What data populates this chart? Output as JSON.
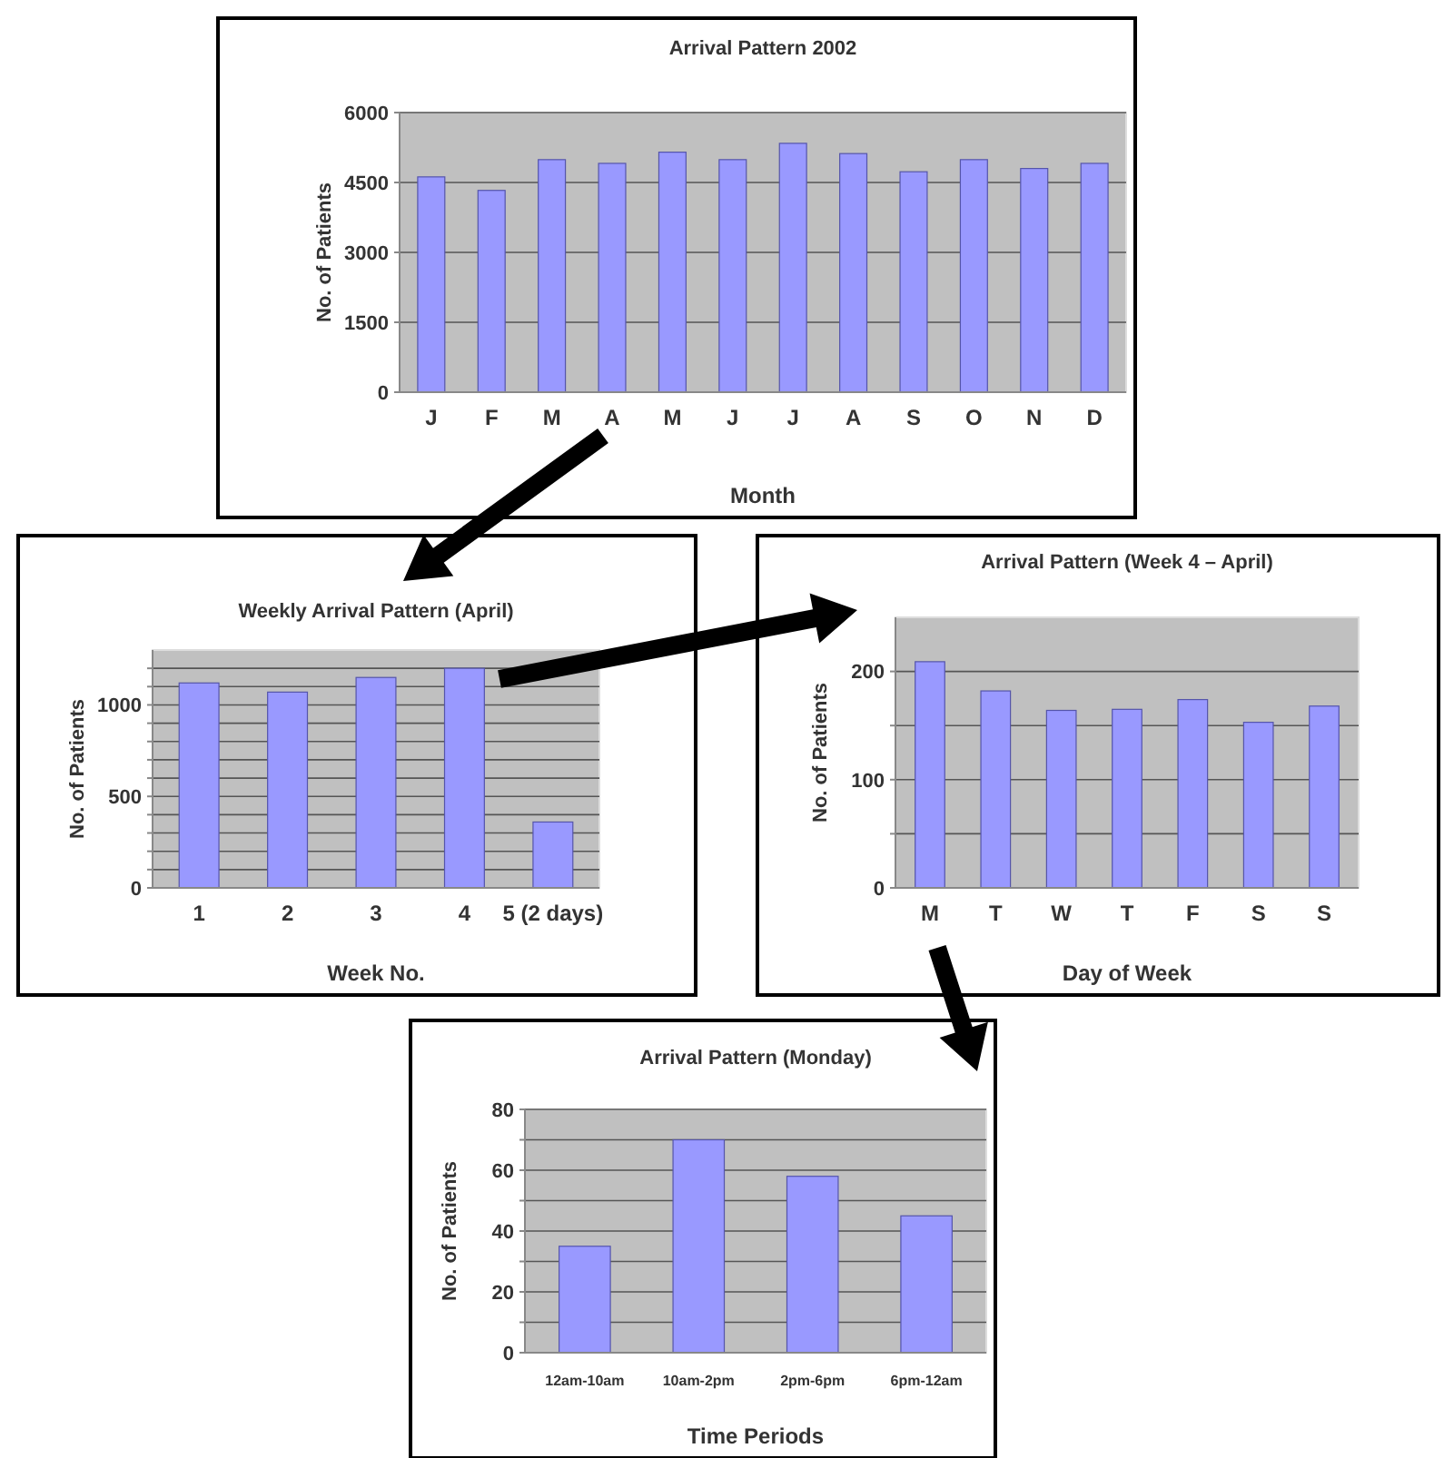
{
  "chart_data": [
    {
      "type": "bar",
      "title": "Arrival Pattern 2002",
      "xlabel": "Month",
      "ylabel": "No. of Patients",
      "categories": [
        "J",
        "F",
        "M",
        "A",
        "M",
        "J",
        "J",
        "A",
        "S",
        "O",
        "N",
        "D"
      ],
      "values": [
        4620,
        4330,
        4990,
        4910,
        5150,
        4990,
        5340,
        5120,
        4730,
        4990,
        4800,
        4910
      ],
      "color": "#9999ff",
      "ylim": [
        0,
        6000
      ],
      "yticks": [
        0,
        1500,
        3000,
        4500,
        6000
      ],
      "grid": "y"
    },
    {
      "type": "bar",
      "title": "Weekly Arrival Pattern (April)",
      "xlabel": "Week No.",
      "ylabel": "No. of Patients",
      "categories": [
        "1",
        "2",
        "3",
        "4",
        "5 (2 days)"
      ],
      "values": [
        1120,
        1070,
        1150,
        1200,
        360
      ],
      "color": "#9999ff",
      "ylim": [
        0,
        1300
      ],
      "yticks": [
        0,
        {
          "value": 100,
          "label": null
        },
        {
          "value": 200,
          "label": null
        },
        {
          "value": 300,
          "label": null
        },
        {
          "value": 400,
          "label": null
        },
        500,
        {
          "value": 600,
          "label": null
        },
        {
          "value": 700,
          "label": null
        },
        {
          "value": 800,
          "label": null
        },
        {
          "value": 900,
          "label": null
        },
        1000,
        {
          "value": 1100,
          "label": null
        },
        {
          "value": 1200,
          "label": null
        }
      ],
      "grid": "y"
    },
    {
      "type": "bar",
      "title": "Arrival Pattern (Week 4 – April)",
      "xlabel": "Day of Week",
      "ylabel": "No. of Patients",
      "categories": [
        "M",
        "T",
        "W",
        "T",
        "F",
        "S",
        "S"
      ],
      "values": [
        209,
        182,
        164,
        165,
        174,
        153,
        168
      ],
      "color": "#9999ff",
      "ylim": [
        0,
        250
      ],
      "yticks": [
        0,
        {
          "value": 50,
          "label": null
        },
        100,
        {
          "value": 150,
          "label": null
        },
        200
      ],
      "grid": "y"
    },
    {
      "type": "bar",
      "title": "Arrival Pattern (Monday)",
      "xlabel": "Time Periods",
      "ylabel": "No. of Patients",
      "categories": [
        "12am-10am",
        "10am-2pm",
        "2pm-6pm",
        "6pm-12am"
      ],
      "values": [
        35,
        70,
        58,
        45
      ],
      "color": "#9999ff",
      "ylim": [
        0,
        80
      ],
      "yticks": [
        0,
        {
          "value": 10,
          "label": null
        },
        20,
        {
          "value": 30,
          "label": null
        },
        40,
        {
          "value": 50,
          "label": null
        },
        60,
        {
          "value": 70,
          "label": null
        },
        80
      ],
      "grid": "y"
    }
  ]
}
